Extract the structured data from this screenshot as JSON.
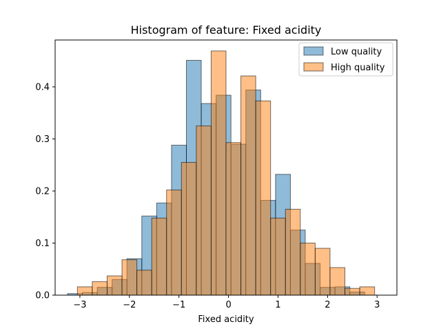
{
  "chart_data": {
    "type": "histogram",
    "title": "Histogram of feature: Fixed acidity",
    "xlabel": "Fixed acidity",
    "ylabel": "",
    "xlim": [
      -3.5,
      3.4
    ],
    "ylim": [
      0,
      0.49
    ],
    "xticks": [
      -3,
      -2,
      -1,
      0,
      1,
      2,
      3
    ],
    "yticks": [
      0.0,
      0.1,
      0.2,
      0.3,
      0.4
    ],
    "ytick_labels": [
      "0.0",
      "0.1",
      "0.2",
      "0.3",
      "0.4"
    ],
    "legend_position": "top-right",
    "series": [
      {
        "name": "Low quality",
        "color": "#1f77b4",
        "edgecolor": "#000000",
        "alpha": 0.5,
        "bin_start": -3.25,
        "bin_width": 0.3,
        "values": [
          0.003,
          0.005,
          0.015,
          0.03,
          0.07,
          0.152,
          0.177,
          0.288,
          0.451,
          0.368,
          0.384,
          0.29,
          0.394,
          0.182,
          0.232,
          0.125,
          0.061,
          0.015,
          0.016,
          0.006
        ]
      },
      {
        "name": "High quality",
        "color": "#ff7f0e",
        "edgecolor": "#000000",
        "alpha": 0.5,
        "bin_start": -3.05,
        "bin_width": 0.3,
        "values": [
          0.016,
          0.026,
          0.037,
          0.068,
          0.048,
          0.148,
          0.202,
          0.255,
          0.325,
          0.469,
          0.293,
          0.421,
          0.373,
          0.148,
          0.165,
          0.1,
          0.09,
          0.053,
          0.013,
          0.016
        ]
      }
    ]
  }
}
